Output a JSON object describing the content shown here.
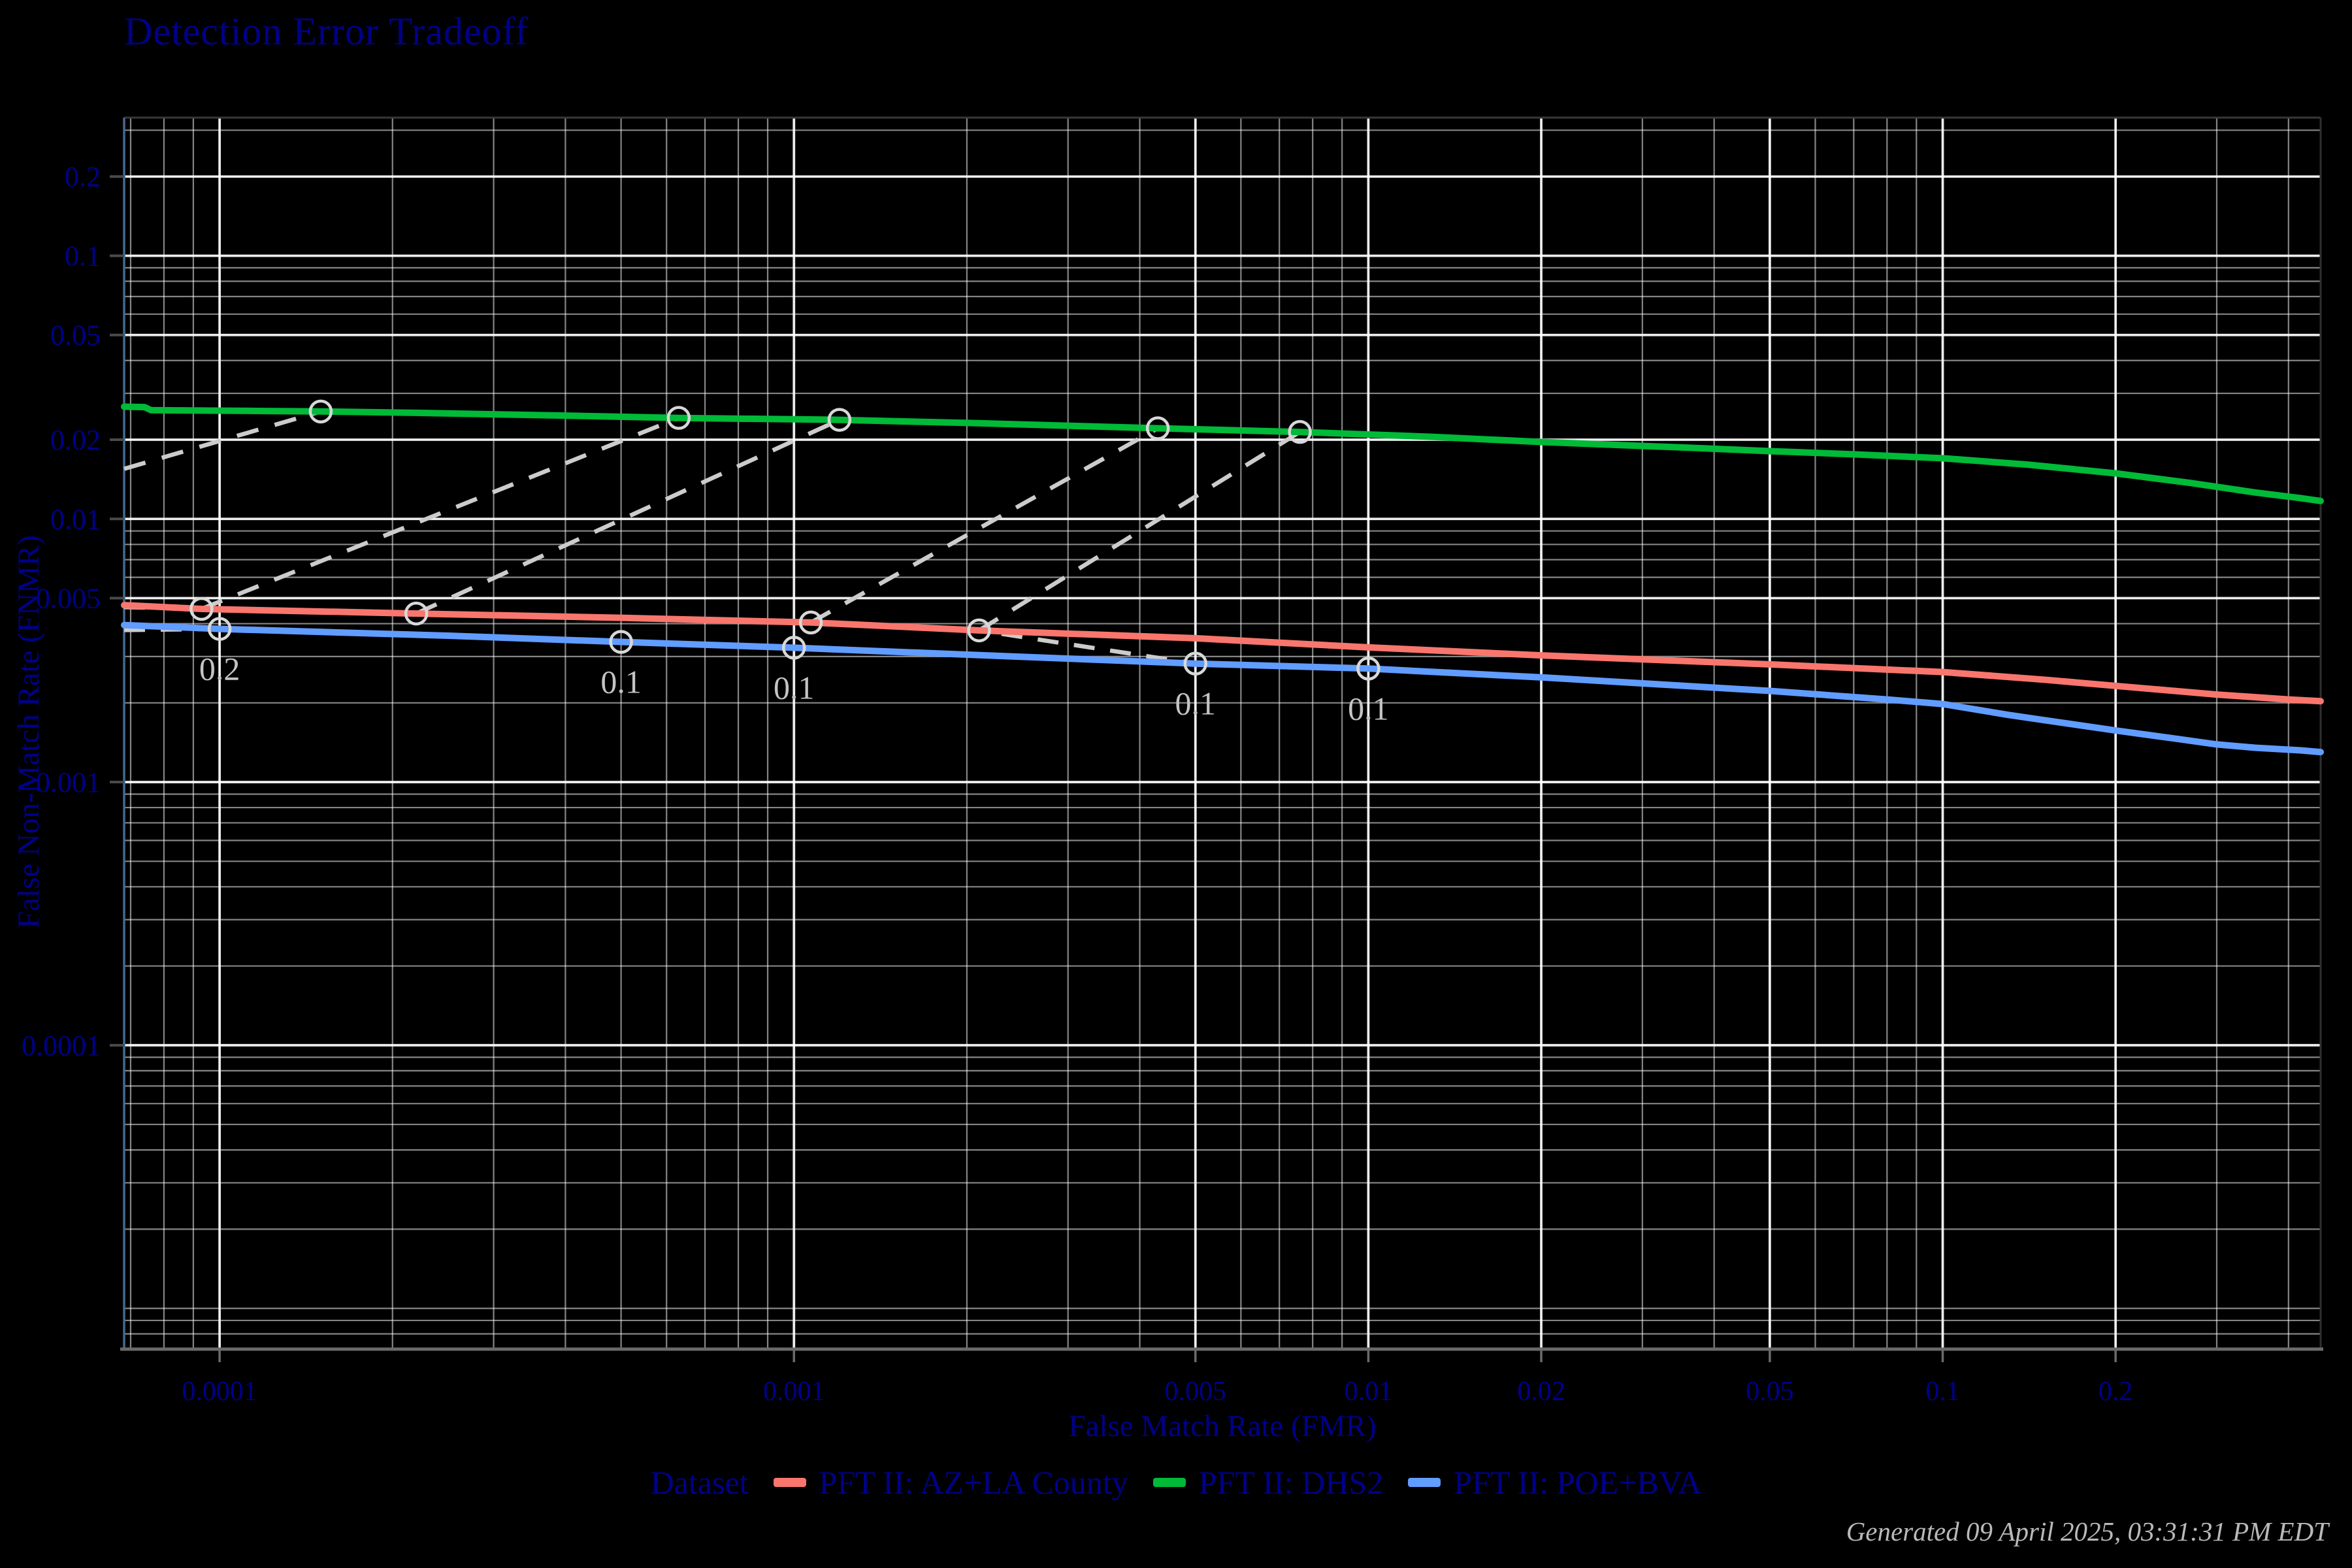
{
  "page": {
    "title": "Detection Error Tradeoff",
    "timestamp": "Generated 09 April 2025, 03:31:31 PM EDT"
  },
  "colors": {
    "background": "#000000",
    "text_navy": "#00008B",
    "grid_major": "rgba(255,255,255,0.88)",
    "grid_minor": "rgba(255,255,255,0.52)",
    "spine_left": "#46698f",
    "spine_top": "#383838",
    "spine_right": "#2f2f2f",
    "spine_bottom": "#6a6a6a",
    "tick_mark": "#4a4a4a",
    "overlay_dash": "#cccccc",
    "overlay_circle": "#d8d8d8",
    "overlay_label": "#c4c4c4",
    "series_red": "#F8766D",
    "series_green": "#00BA38",
    "series_blue": "#619CFF"
  },
  "legend": {
    "title": "Dataset",
    "items": [
      {
        "label": "PFT II: AZ+LA County",
        "color": "#F8766D"
      },
      {
        "label": "PFT II: DHS2",
        "color": "#00BA38"
      },
      {
        "label": "PFT II: POE+BVA",
        "color": "#619CFF"
      }
    ]
  },
  "chart_data": {
    "type": "line",
    "title": "Detection Error Tradeoff",
    "xlabel": "False Match Rate (FMR)",
    "ylabel": "False Non-Match Rate (FNMR)",
    "x_scale": "log",
    "y_scale": "log",
    "xlim": [
      6.82e-05,
      0.455
    ],
    "ylim": [
      7e-06,
      0.335
    ],
    "x_ticks": [
      0.0001,
      0.001,
      0.005,
      0.01,
      0.02,
      0.05,
      0.1,
      0.2
    ],
    "x_tick_labels": [
      "0.0001",
      "0.001",
      "0.005",
      "0.01",
      "0.02",
      "0.05",
      "0.1",
      "0.2"
    ],
    "y_ticks": [
      0.2,
      0.1,
      0.05,
      0.02,
      0.01,
      0.005,
      0.001,
      0.0001
    ],
    "y_tick_labels": [
      "0.2",
      "0.1",
      "0.05",
      "0.02",
      "0.01",
      "0.005",
      "0.001",
      "0.0001"
    ],
    "grid": true,
    "legend_position": "bottom",
    "series": [
      {
        "name": "PFT II: DHS2",
        "color": "#00BA38",
        "points": [
          [
            6.82e-05,
            0.0267
          ],
          [
            7.4e-05,
            0.0266
          ],
          [
            7.6e-05,
            0.0259
          ],
          [
            0.00012,
            0.0257
          ],
          [
            0.00015,
            0.0256
          ],
          [
            0.00022,
            0.0253
          ],
          [
            0.0004,
            0.0247
          ],
          [
            0.00063,
            0.0242
          ],
          [
            0.0012,
            0.0238
          ],
          [
            0.0021,
            0.0231
          ],
          [
            0.0043,
            0.0221
          ],
          [
            0.0076,
            0.0214
          ],
          [
            0.013,
            0.0205
          ],
          [
            0.02,
            0.0196
          ],
          [
            0.035,
            0.0187
          ],
          [
            0.05,
            0.0181
          ],
          [
            0.07,
            0.0176
          ],
          [
            0.1,
            0.017
          ],
          [
            0.14,
            0.0161
          ],
          [
            0.2,
            0.0149
          ],
          [
            0.27,
            0.0137
          ],
          [
            0.35,
            0.0126
          ],
          [
            0.42,
            0.012
          ],
          [
            0.455,
            0.0117
          ]
        ]
      },
      {
        "name": "PFT II: AZ+LA County",
        "color": "#F8766D",
        "points": [
          [
            6.82e-05,
            0.0047
          ],
          [
            9.3e-05,
            0.00455
          ],
          [
            0.00022,
            0.00437
          ],
          [
            0.0005,
            0.00421
          ],
          [
            0.00107,
            0.00404
          ],
          [
            0.0021,
            0.00377
          ],
          [
            0.005,
            0.00352
          ],
          [
            0.01,
            0.00325
          ],
          [
            0.02,
            0.00303
          ],
          [
            0.05,
            0.0028
          ],
          [
            0.1,
            0.00262
          ],
          [
            0.15,
            0.00245
          ],
          [
            0.2,
            0.00232
          ],
          [
            0.3,
            0.00215
          ],
          [
            0.4,
            0.00206
          ],
          [
            0.455,
            0.00203
          ]
        ]
      },
      {
        "name": "PFT II: POE+BVA",
        "color": "#619CFF",
        "points": [
          [
            6.82e-05,
            0.00395
          ],
          [
            0.0001,
            0.00382
          ],
          [
            0.00025,
            0.0036
          ],
          [
            0.0005,
            0.00341
          ],
          [
            0.001,
            0.00324
          ],
          [
            0.002,
            0.00305
          ],
          [
            0.005,
            0.00282
          ],
          [
            0.01,
            0.0027
          ],
          [
            0.02,
            0.0025
          ],
          [
            0.05,
            0.00222
          ],
          [
            0.08,
            0.00206
          ],
          [
            0.1,
            0.00198
          ],
          [
            0.13,
            0.0018
          ],
          [
            0.15,
            0.00172
          ],
          [
            0.2,
            0.00157
          ],
          [
            0.25,
            0.00147
          ],
          [
            0.3,
            0.00139
          ],
          [
            0.35,
            0.00135
          ],
          [
            0.42,
            0.00132
          ],
          [
            0.455,
            0.0013
          ]
        ]
      }
    ],
    "threshold_markers": [
      {
        "series": "PFT II: DHS2",
        "points": [
          [
            0.00015,
            0.0256
          ],
          [
            0.00063,
            0.0242
          ],
          [
            0.0012,
            0.0238
          ],
          [
            0.0043,
            0.0221
          ],
          [
            0.0076,
            0.0214
          ]
        ]
      },
      {
        "series": "PFT II: AZ+LA County",
        "points": [
          [
            9.3e-05,
            0.00455
          ],
          [
            0.00022,
            0.00437
          ],
          [
            0.00107,
            0.00404
          ],
          [
            0.0021,
            0.00377
          ]
        ]
      },
      {
        "series": "PFT II: POE+BVA",
        "points": [
          [
            0.0001,
            0.00382
          ],
          [
            0.0005,
            0.00341
          ],
          [
            0.001,
            0.00324
          ],
          [
            0.005,
            0.00282
          ],
          [
            0.01,
            0.0027
          ]
        ]
      }
    ],
    "threshold_steep_lines": [
      [
        [
          6.82e-05,
          0.0155
        ],
        [
          0.00015,
          0.0256
        ]
      ],
      [
        [
          9.3e-05,
          0.00455
        ],
        [
          0.00063,
          0.0242
        ]
      ],
      [
        [
          0.00022,
          0.00437
        ],
        [
          0.0012,
          0.0238
        ]
      ],
      [
        [
          0.00107,
          0.00404
        ],
        [
          0.0043,
          0.0221
        ]
      ],
      [
        [
          0.0021,
          0.00377
        ],
        [
          0.0076,
          0.0214
        ]
      ]
    ],
    "threshold_trace_lines": [
      [
        [
          6.82e-05,
          0.00462
        ],
        [
          9.3e-05,
          0.00455
        ],
        [
          0.00022,
          0.00437
        ],
        [
          0.00107,
          0.00404
        ],
        [
          0.0021,
          0.00377
        ],
        [
          0.005,
          0.00282
        ],
        [
          0.01,
          0.0027
        ]
      ],
      [
        [
          6.82e-05,
          0.00378
        ],
        [
          0.0001,
          0.00382
        ],
        [
          0.0005,
          0.00341
        ],
        [
          0.001,
          0.00324
        ],
        [
          0.005,
          0.00282
        ]
      ]
    ],
    "threshold_labels": [
      {
        "text": "0.2",
        "x": 0.0001,
        "y": 0.00382
      },
      {
        "text": "0.1",
        "x": 0.0005,
        "y": 0.00341
      },
      {
        "text": "0.1",
        "x": 0.001,
        "y": 0.00324
      },
      {
        "text": "0.1",
        "x": 0.005,
        "y": 0.00282
      },
      {
        "text": "0.1",
        "x": 0.01,
        "y": 0.0027
      }
    ]
  }
}
